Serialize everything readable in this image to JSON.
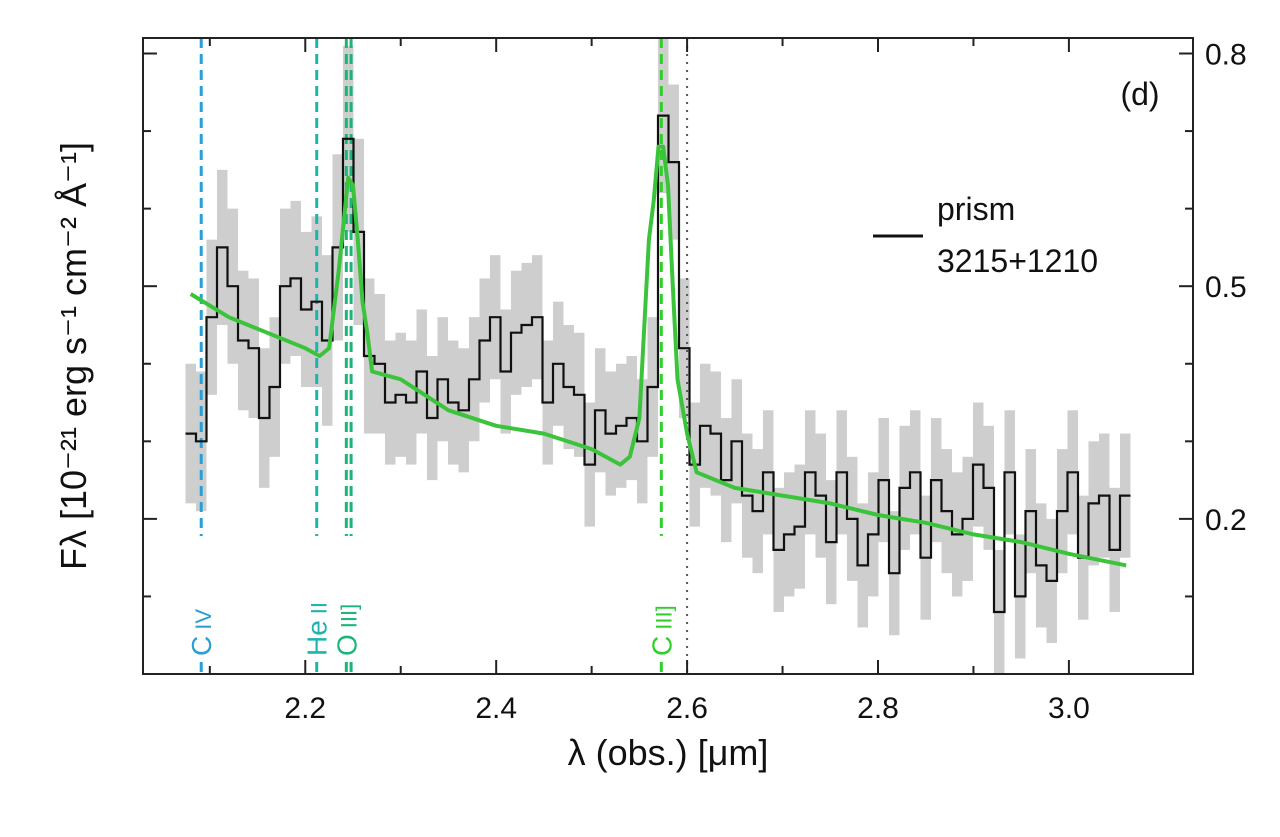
{
  "chart_data": {
    "type": "line",
    "title": "",
    "panel_label": "(d)",
    "xlabel": "λ (obs.) [μm]",
    "ylabel": "Fλ [10⁻²¹ erg s⁻¹ cm⁻² Å⁻¹]",
    "xlim": [
      2.03,
      3.13
    ],
    "ylim": [
      0.0,
      0.82
    ],
    "x_ticks": [
      2.2,
      2.4,
      2.6,
      2.8,
      3.0
    ],
    "x_tick_labels": [
      "2.2",
      "2.4",
      "2.6",
      "2.8",
      "3.0"
    ],
    "y_ticks": [
      0.2,
      0.5,
      0.8
    ],
    "y_tick_labels": [
      "0.2",
      "0.5",
      "0.8"
    ],
    "y_minor_ticks": [
      0.1,
      0.3,
      0.4,
      0.6,
      0.7
    ],
    "x_minor_ticks": [
      2.1,
      2.3,
      2.5,
      2.7,
      2.9
    ],
    "legend": {
      "placement": "right",
      "entries": [
        {
          "name": "prism",
          "label_line2": "3215+1210",
          "color": "#111111"
        }
      ]
    },
    "emission_lines": [
      {
        "label_main": "C",
        "label_ion": "IV",
        "x": 2.091,
        "color": "#2a9fd6",
        "style": "dashed"
      },
      {
        "label_main": "He",
        "label_ion": "II",
        "x": 2.212,
        "color": "#1fb3b0",
        "style": "dashed"
      },
      {
        "label_main": "O",
        "label_ion": "III]",
        "x": 2.243,
        "color": "#1bb57a",
        "style": "dashed"
      },
      {
        "label_main": "",
        "label_ion": "",
        "x": 2.248,
        "color": "#1bb57a",
        "style": "dashed"
      },
      {
        "label_main": "C",
        "label_ion": "III]",
        "x": 2.573,
        "color": "#2fcf2a",
        "style": "dashed"
      },
      {
        "label_main": "",
        "label_ion": "",
        "x": 2.6,
        "color": "#555555",
        "style": "dotted"
      }
    ],
    "series": [
      {
        "name": "prism",
        "color": "#111111",
        "kind": "step",
        "x": [
          2.08,
          2.091,
          2.102,
          2.113,
          2.124,
          2.135,
          2.146,
          2.157,
          2.168,
          2.179,
          2.19,
          2.201,
          2.212,
          2.223,
          2.234,
          2.245,
          2.256,
          2.267,
          2.278,
          2.289,
          2.3,
          2.311,
          2.322,
          2.333,
          2.344,
          2.355,
          2.366,
          2.377,
          2.388,
          2.399,
          2.41,
          2.421,
          2.432,
          2.443,
          2.454,
          2.465,
          2.476,
          2.487,
          2.498,
          2.509,
          2.52,
          2.531,
          2.542,
          2.553,
          2.564,
          2.575,
          2.586,
          2.597,
          2.608,
          2.619,
          2.63,
          2.641,
          2.652,
          2.663,
          2.674,
          2.685,
          2.696,
          2.707,
          2.718,
          2.729,
          2.74,
          2.751,
          2.762,
          2.773,
          2.784,
          2.795,
          2.806,
          2.817,
          2.828,
          2.839,
          2.85,
          2.861,
          2.872,
          2.883,
          2.894,
          2.905,
          2.916,
          2.927,
          2.938,
          2.949,
          2.96,
          2.971,
          2.982,
          2.993,
          3.004,
          3.015,
          3.026,
          3.037,
          3.048,
          3.059
        ],
        "y": [
          0.31,
          0.3,
          0.46,
          0.55,
          0.5,
          0.43,
          0.42,
          0.33,
          0.37,
          0.5,
          0.51,
          0.47,
          0.48,
          0.43,
          0.55,
          0.69,
          0.57,
          0.41,
          0.4,
          0.35,
          0.36,
          0.35,
          0.39,
          0.33,
          0.38,
          0.35,
          0.34,
          0.38,
          0.43,
          0.46,
          0.39,
          0.44,
          0.45,
          0.46,
          0.35,
          0.4,
          0.37,
          0.36,
          0.27,
          0.34,
          0.31,
          0.32,
          0.33,
          0.3,
          0.37,
          0.72,
          0.66,
          0.42,
          0.27,
          0.32,
          0.31,
          0.25,
          0.3,
          0.23,
          0.21,
          0.26,
          0.16,
          0.18,
          0.19,
          0.26,
          0.23,
          0.17,
          0.26,
          0.2,
          0.14,
          0.18,
          0.25,
          0.13,
          0.24,
          0.26,
          0.15,
          0.25,
          0.21,
          0.18,
          0.2,
          0.27,
          0.24,
          0.08,
          0.26,
          0.1,
          0.21,
          0.14,
          0.12,
          0.21,
          0.26,
          0.15,
          0.22,
          0.23,
          0.16,
          0.23
        ]
      },
      {
        "name": "",
        "color": "#3bc43b",
        "kind": "model",
        "x": [
          2.08,
          2.12,
          2.16,
          2.2,
          2.215,
          2.225,
          2.235,
          2.24,
          2.245,
          2.25,
          2.255,
          2.26,
          2.265,
          2.27,
          2.3,
          2.35,
          2.4,
          2.45,
          2.5,
          2.53,
          2.54,
          2.55,
          2.56,
          2.565,
          2.57,
          2.575,
          2.58,
          2.585,
          2.59,
          2.6,
          2.61,
          2.65,
          2.7,
          2.75,
          2.8,
          2.85,
          2.9,
          2.95,
          3.0,
          3.06
        ],
        "y": [
          0.49,
          0.46,
          0.44,
          0.42,
          0.41,
          0.42,
          0.52,
          0.58,
          0.64,
          0.63,
          0.56,
          0.48,
          0.44,
          0.39,
          0.38,
          0.34,
          0.32,
          0.31,
          0.29,
          0.27,
          0.28,
          0.33,
          0.56,
          0.61,
          0.68,
          0.68,
          0.63,
          0.5,
          0.38,
          0.31,
          0.26,
          0.24,
          0.23,
          0.22,
          0.205,
          0.195,
          0.18,
          0.17,
          0.155,
          0.14
        ]
      }
    ],
    "error_band": {
      "color": "#c9c9c9",
      "sigma": [
        0.09,
        0.09,
        0.1,
        0.1,
        0.1,
        0.09,
        0.09,
        0.09,
        0.09,
        0.1,
        0.1,
        0.1,
        0.11,
        0.11,
        0.12,
        0.12,
        0.12,
        0.1,
        0.09,
        0.08,
        0.08,
        0.08,
        0.08,
        0.08,
        0.08,
        0.08,
        0.08,
        0.08,
        0.08,
        0.08,
        0.08,
        0.08,
        0.08,
        0.08,
        0.08,
        0.08,
        0.08,
        0.08,
        0.08,
        0.08,
        0.08,
        0.08,
        0.08,
        0.08,
        0.09,
        0.1,
        0.1,
        0.09,
        0.08,
        0.08,
        0.08,
        0.08,
        0.08,
        0.08,
        0.08,
        0.08,
        0.08,
        0.08,
        0.08,
        0.08,
        0.08,
        0.08,
        0.08,
        0.08,
        0.08,
        0.08,
        0.08,
        0.08,
        0.08,
        0.08,
        0.08,
        0.08,
        0.08,
        0.08,
        0.08,
        0.08,
        0.08,
        0.08,
        0.08,
        0.08,
        0.08,
        0.08,
        0.08,
        0.08,
        0.08,
        0.08,
        0.08,
        0.08,
        0.08,
        0.08
      ]
    }
  }
}
